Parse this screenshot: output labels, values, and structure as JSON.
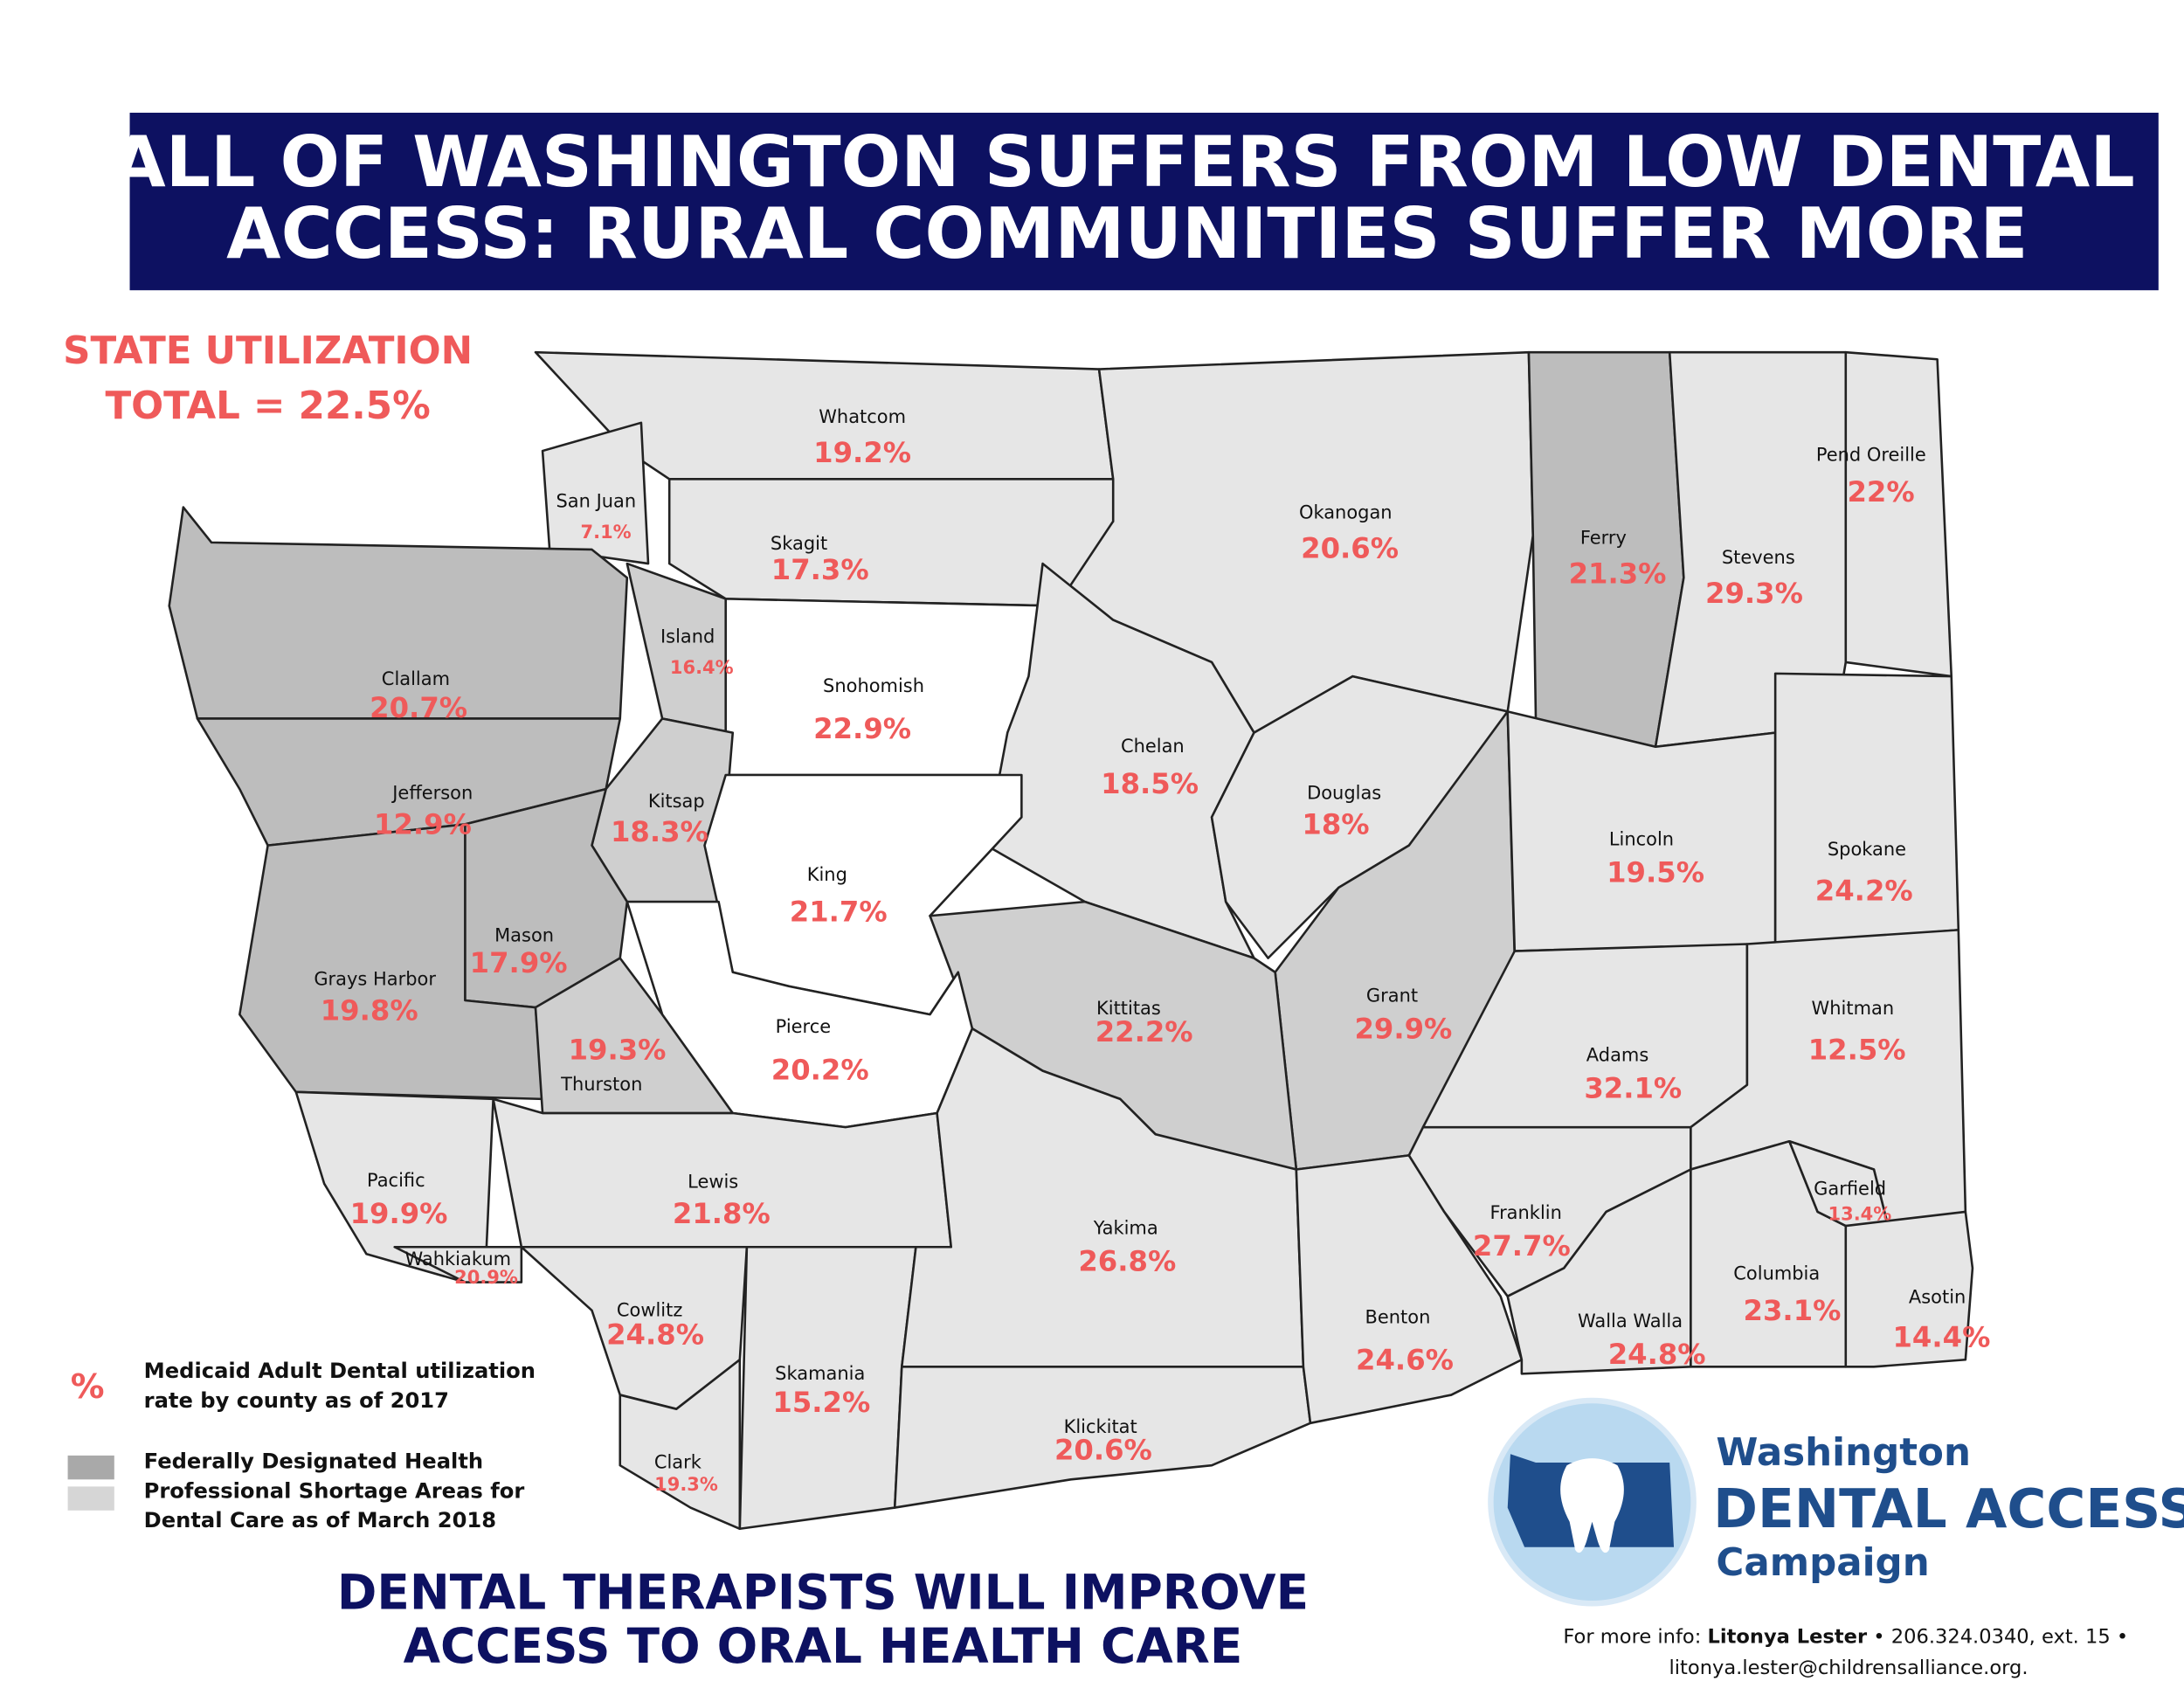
{
  "header": {
    "title_lines": [
      "ALL OF WASHINGTON SUFFERS FROM LOW DENTAL",
      "ACCESS: RURAL COMMUNITIES SUFFER MORE"
    ]
  },
  "state_utilization": {
    "lines": [
      "STATE UTILIZATION",
      "TOTAL = 22.5%"
    ]
  },
  "counties": [
    {
      "name": "Whatcom",
      "value": "19.2%"
    },
    {
      "name": "San Juan",
      "value": "7.1%"
    },
    {
      "name": "Skagit",
      "value": "17.3%"
    },
    {
      "name": "Island",
      "value": "16.4%"
    },
    {
      "name": "Clallam",
      "value": "20.7%"
    },
    {
      "name": "Snohomish",
      "value": "22.9%"
    },
    {
      "name": "Jefferson",
      "value": "12.9%"
    },
    {
      "name": "Kitsap",
      "value": "18.3%"
    },
    {
      "name": "Okanogan",
      "value": "20.6%"
    },
    {
      "name": "Ferry",
      "value": "21.3%"
    },
    {
      "name": "Stevens",
      "value": "29.3%"
    },
    {
      "name": "Pend Oreille",
      "value": "22%"
    },
    {
      "name": "Chelan",
      "value": "18.5%"
    },
    {
      "name": "Douglas",
      "value": "18%"
    },
    {
      "name": "Lincoln",
      "value": "19.5%"
    },
    {
      "name": "Spokane",
      "value": "24.2%"
    },
    {
      "name": "King",
      "value": "21.7%"
    },
    {
      "name": "Mason",
      "value": "17.9%"
    },
    {
      "name": "Grays Harbor",
      "value": "19.8%"
    },
    {
      "name": "Kittitas",
      "value": "22.2%"
    },
    {
      "name": "Grant",
      "value": "29.9%"
    },
    {
      "name": "Pierce",
      "value": "20.2%"
    },
    {
      "name": "Thurston",
      "value": "19.3%"
    },
    {
      "name": "Adams",
      "value": "32.1%"
    },
    {
      "name": "Whitman",
      "value": "12.5%"
    },
    {
      "name": "Pacific",
      "value": "19.9%"
    },
    {
      "name": "Lewis",
      "value": "21.8%"
    },
    {
      "name": "Franklin",
      "value": "27.7%"
    },
    {
      "name": "Garfield",
      "value": "13.4%"
    },
    {
      "name": "Yakima",
      "value": "26.8%"
    },
    {
      "name": "Wahkiakum",
      "value": "20.9%"
    },
    {
      "name": "Columbia",
      "value": "23.1%"
    },
    {
      "name": "Asotin",
      "value": "14.4%"
    },
    {
      "name": "Cowlitz",
      "value": "24.8%"
    },
    {
      "name": "Benton",
      "value": "24.6%"
    },
    {
      "name": "Walla Walla",
      "value": "24.8%"
    },
    {
      "name": "Skamania",
      "value": "15.2%"
    },
    {
      "name": "Klickitat",
      "value": "20.6%"
    },
    {
      "name": "Clark",
      "value": "19.3%"
    }
  ],
  "legend": {
    "symbol": "%",
    "utilization_lines": [
      "Medicaid Adult Dental utilization",
      "rate by county as of 2017"
    ],
    "shortage_lines": [
      "Federally Designated Health",
      "Professional Shortage Areas for",
      "Dental Care as of March 2018"
    ]
  },
  "footer": {
    "slogan_lines": [
      "DENTAL THERAPISTS WILL IMPROVE",
      "ACCESS TO ORAL HEALTH CARE"
    ],
    "contact": {
      "prefix": "For more info:",
      "name": "Litonya Lester",
      "details": "• 206.324.0340, ext. 15 •",
      "email": "litonya.lester@childrensalliance.org."
    }
  },
  "logo": {
    "line1": "Washington",
    "line2": "DENTAL ACCESS",
    "line3": "Campaign"
  }
}
